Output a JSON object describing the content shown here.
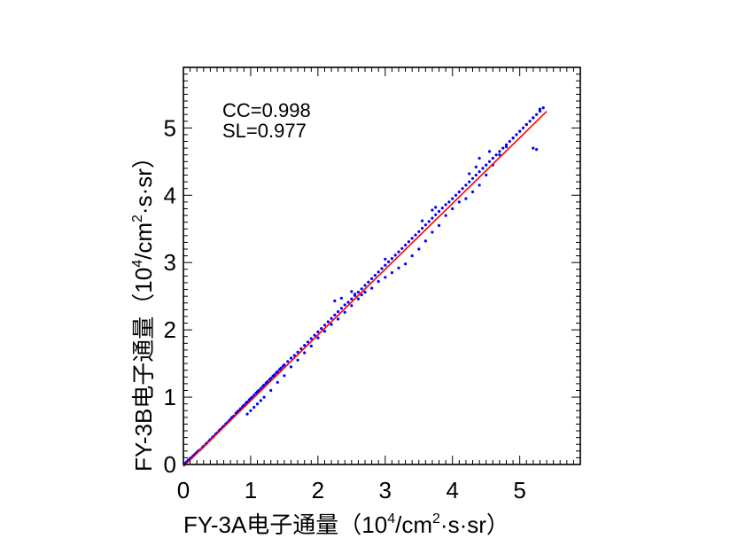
{
  "chart_data": {
    "type": "scatter",
    "title": "",
    "xlabel": "FY-3A电子通量（10⁴/cm²·s·sr）",
    "ylabel": "FY-3B电子通量（10⁴/cm²·s·sr）",
    "xlabel_parts": {
      "main": "FY-3A电子通量（10",
      "sup1": "4",
      "mid": "/cm",
      "sup2": "2",
      "end": "·s·sr）"
    },
    "ylabel_parts": {
      "main": "FY-3B电子通量（10",
      "sup1": "4",
      "mid": "/cm",
      "sup2": "2",
      "end": "·s·sr）"
    },
    "xlim": [
      0,
      5.9
    ],
    "ylim": [
      0,
      5.9
    ],
    "xticks": [
      0,
      1,
      2,
      3,
      4,
      5
    ],
    "yticks": [
      0,
      1,
      2,
      3,
      4,
      5
    ],
    "xtick_labels": [
      "0",
      "1",
      "2",
      "3",
      "4",
      "5"
    ],
    "ytick_labels": [
      "0",
      "1",
      "2",
      "3",
      "4",
      "5"
    ],
    "grid": false,
    "annotations": [
      "CC=0.998",
      "SL=0.977"
    ],
    "point_color": "#0000ff",
    "fit_color": "#ff0000",
    "fit_line": {
      "slope": 0.977,
      "intercept": -0.03,
      "x": [
        0.0,
        5.4
      ]
    },
    "series": [
      {
        "x": [
          0.02,
          0.04,
          0.05,
          0.07,
          0.08,
          0.1,
          0.12,
          0.14,
          0.16,
          0.18,
          0.2,
          0.22,
          0.25,
          0.28,
          0.3,
          0.33,
          0.35,
          0.38,
          0.4,
          0.43,
          0.45,
          0.48,
          0.5,
          0.53,
          0.55,
          0.58,
          0.6,
          0.63,
          0.65,
          0.68,
          0.7,
          0.72,
          0.75,
          0.78,
          0.8,
          0.82,
          0.85,
          0.88,
          0.9,
          0.93,
          0.95,
          0.98,
          1.0,
          1.02,
          1.05,
          1.08,
          1.1,
          1.12,
          1.15,
          1.18,
          1.2,
          1.23,
          1.25,
          1.28,
          1.3,
          1.33,
          1.35,
          1.38,
          1.4,
          1.43,
          1.45,
          1.48,
          1.5,
          1.55,
          1.6,
          1.65,
          1.7,
          1.75,
          1.8,
          1.85,
          1.9,
          1.95,
          2.0,
          2.05,
          2.1,
          2.15,
          2.2,
          2.25,
          2.3,
          2.35,
          2.4,
          2.45,
          2.5,
          2.55,
          2.6,
          2.65,
          2.7,
          2.75,
          2.8,
          2.85,
          2.9,
          2.95,
          3.0,
          3.05,
          3.1,
          3.15,
          3.2,
          3.25,
          3.3,
          3.35,
          3.4,
          3.45,
          3.5,
          3.55,
          3.6,
          3.65,
          3.7,
          3.75,
          3.8,
          3.85,
          3.9,
          3.95,
          4.0,
          4.05,
          4.1,
          4.15,
          4.2,
          4.25,
          4.3,
          4.35,
          4.4,
          4.45,
          4.5,
          4.55,
          4.6,
          4.65,
          4.7,
          4.75,
          4.8,
          4.85,
          4.9,
          4.95,
          5.0,
          5.05,
          5.1,
          5.15,
          5.2,
          5.25,
          5.3,
          5.35,
          0.95,
          1.0,
          1.05,
          1.1,
          1.15,
          1.2,
          1.3,
          1.4,
          1.5,
          1.6,
          1.7,
          1.8,
          1.9,
          2.0,
          2.1,
          2.2,
          2.3,
          2.4,
          2.5,
          2.6,
          2.7,
          2.8,
          2.9,
          3.0,
          3.1,
          3.2,
          3.3,
          3.4,
          3.5,
          3.6,
          3.7,
          3.8,
          3.9,
          4.0,
          4.1,
          4.2,
          4.3,
          4.4,
          4.5,
          4.6,
          4.7,
          4.8,
          4.9,
          5.0,
          5.1,
          5.2,
          5.3,
          2.25,
          2.35,
          2.5,
          2.55,
          2.65,
          3.0,
          3.55,
          3.7,
          3.75,
          4.25,
          4.35,
          4.4,
          4.55,
          5.2,
          5.25
        ],
        "y": [
          0.01,
          0.03,
          0.04,
          0.06,
          0.07,
          0.09,
          0.1,
          0.12,
          0.14,
          0.16,
          0.18,
          0.2,
          0.22,
          0.25,
          0.27,
          0.3,
          0.32,
          0.35,
          0.37,
          0.4,
          0.42,
          0.45,
          0.47,
          0.5,
          0.52,
          0.55,
          0.57,
          0.6,
          0.62,
          0.65,
          0.67,
          0.7,
          0.72,
          0.76,
          0.78,
          0.8,
          0.83,
          0.86,
          0.88,
          0.91,
          0.93,
          0.96,
          0.98,
          1.0,
          1.03,
          1.06,
          1.08,
          1.1,
          1.13,
          1.16,
          1.18,
          1.21,
          1.23,
          1.26,
          1.28,
          1.31,
          1.33,
          1.36,
          1.38,
          1.41,
          1.43,
          1.46,
          1.48,
          1.53,
          1.58,
          1.62,
          1.67,
          1.72,
          1.77,
          1.82,
          1.87,
          1.92,
          1.97,
          2.02,
          2.07,
          2.12,
          2.17,
          2.22,
          2.27,
          2.32,
          2.37,
          2.41,
          2.46,
          2.51,
          2.56,
          2.61,
          2.66,
          2.71,
          2.76,
          2.81,
          2.86,
          2.91,
          2.96,
          3.01,
          3.06,
          3.11,
          3.16,
          3.21,
          3.26,
          3.31,
          3.36,
          3.41,
          3.46,
          3.51,
          3.56,
          3.61,
          3.66,
          3.71,
          3.76,
          3.81,
          3.86,
          3.9,
          3.95,
          4.0,
          4.05,
          4.1,
          4.15,
          4.2,
          4.25,
          4.3,
          4.35,
          4.4,
          4.45,
          4.5,
          4.55,
          4.6,
          4.65,
          4.7,
          4.75,
          4.8,
          4.85,
          4.9,
          4.95,
          5.0,
          5.05,
          5.1,
          5.15,
          5.2,
          5.25,
          5.3,
          0.75,
          0.8,
          0.85,
          0.9,
          0.95,
          1.0,
          1.1,
          1.22,
          1.32,
          1.45,
          1.55,
          1.66,
          1.76,
          1.88,
          1.98,
          2.08,
          2.16,
          2.26,
          2.36,
          2.46,
          2.56,
          2.62,
          2.72,
          2.78,
          2.85,
          2.92,
          2.98,
          3.1,
          3.2,
          3.32,
          3.45,
          3.55,
          3.7,
          3.8,
          3.9,
          3.95,
          4.05,
          4.15,
          4.3,
          4.45,
          4.6,
          4.72,
          4.85,
          4.95,
          5.05,
          5.15,
          5.28,
          2.43,
          2.47,
          2.57,
          2.53,
          2.52,
          3.05,
          3.62,
          3.78,
          3.82,
          4.32,
          4.42,
          4.55,
          4.65,
          4.7,
          4.68
        ]
      }
    ]
  }
}
